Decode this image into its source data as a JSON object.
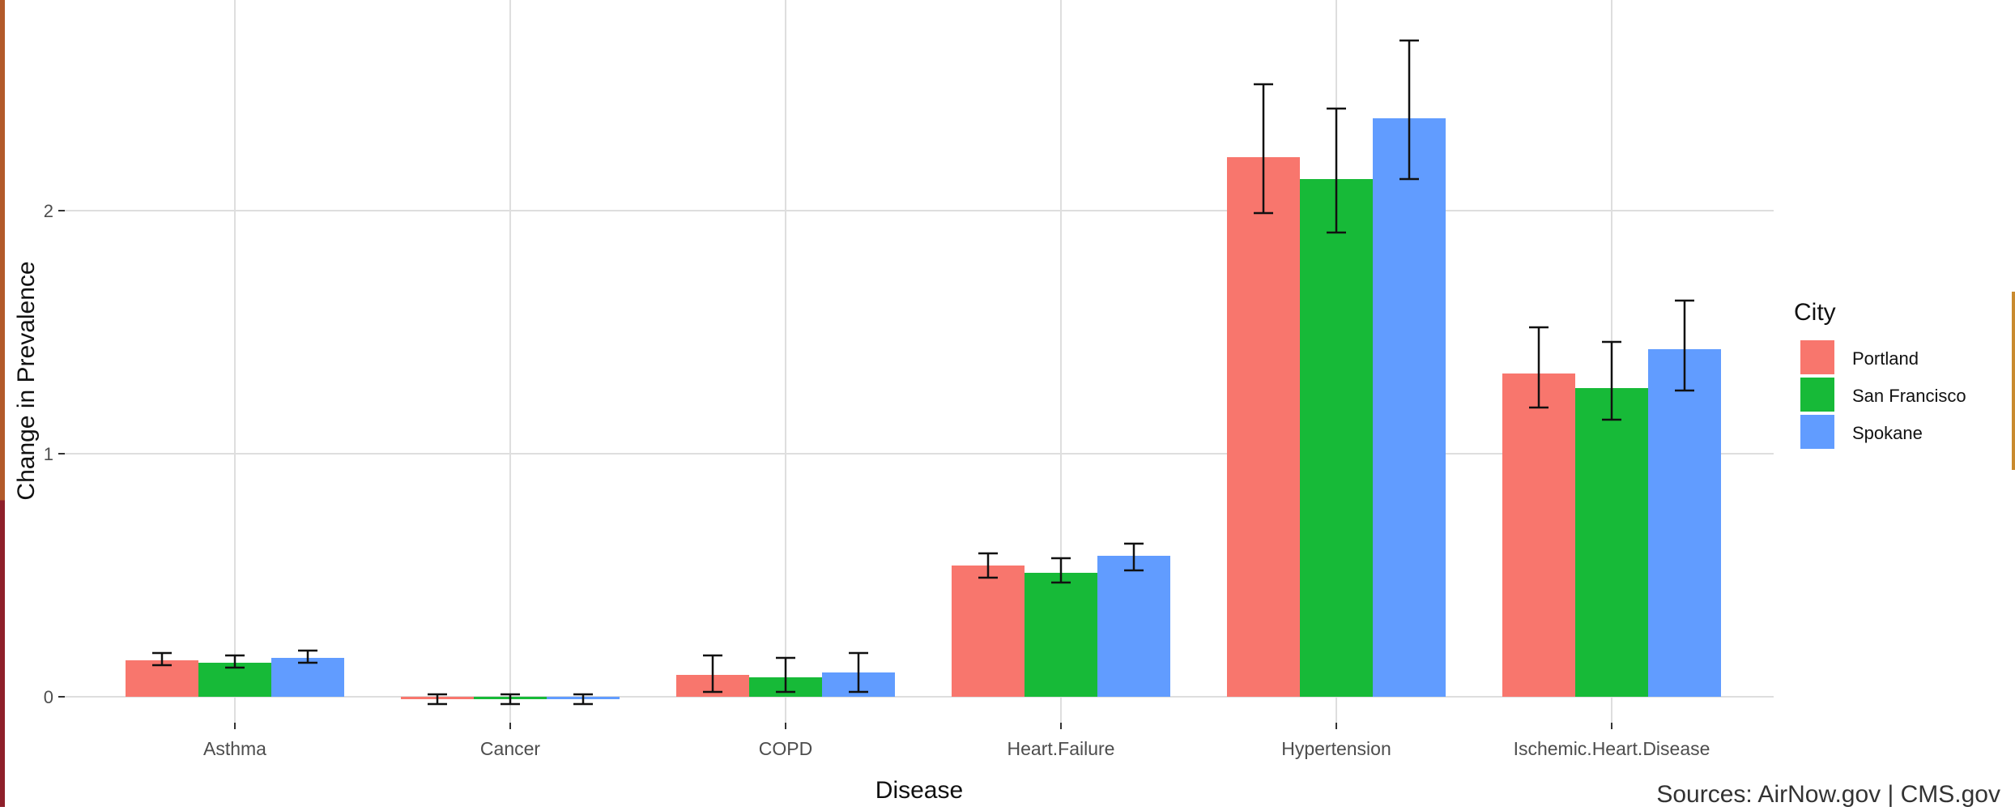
{
  "chart_data": {
    "type": "bar",
    "title": "",
    "xlabel": "Disease",
    "ylabel": "Change in Prevalence",
    "ylim": [
      -0.08,
      2.8
    ],
    "yticks": [
      0,
      1,
      2
    ],
    "grid": true,
    "legend": {
      "title": "City",
      "placement": "right"
    },
    "categories": [
      "Asthma",
      "Cancer",
      "COPD",
      "Heart.Failure",
      "Hypertension",
      "Ischemic.Heart.Disease"
    ],
    "series": [
      {
        "name": "Portland",
        "color": "#F8766D",
        "values": [
          0.15,
          -0.01,
          0.09,
          0.54,
          2.22,
          1.33
        ],
        "error_low": [
          0.13,
          -0.03,
          0.02,
          0.49,
          1.99,
          1.19
        ],
        "error_high": [
          0.18,
          0.01,
          0.17,
          0.59,
          2.52,
          1.52
        ]
      },
      {
        "name": "San Francisco",
        "color": "#17BA38",
        "values": [
          0.14,
          -0.01,
          0.08,
          0.51,
          2.13,
          1.27
        ],
        "error_low": [
          0.12,
          -0.03,
          0.02,
          0.47,
          1.91,
          1.14
        ],
        "error_high": [
          0.17,
          0.01,
          0.16,
          0.57,
          2.42,
          1.46
        ]
      },
      {
        "name": "Spokane",
        "color": "#619CFF",
        "values": [
          0.16,
          -0.01,
          0.1,
          0.58,
          2.38,
          1.43
        ],
        "error_low": [
          0.14,
          -0.03,
          0.02,
          0.52,
          2.13,
          1.26
        ],
        "error_high": [
          0.19,
          0.01,
          0.18,
          0.63,
          2.7,
          1.63
        ]
      }
    ]
  },
  "footer": {
    "sources": "Sources: AirNow.gov | CMS.gov"
  },
  "colors": {
    "grid": "#DEDEDE",
    "axis_text": "#4D4D4D",
    "left_edge": "#8E1F2A",
    "right_edge": "#C98A2E"
  }
}
